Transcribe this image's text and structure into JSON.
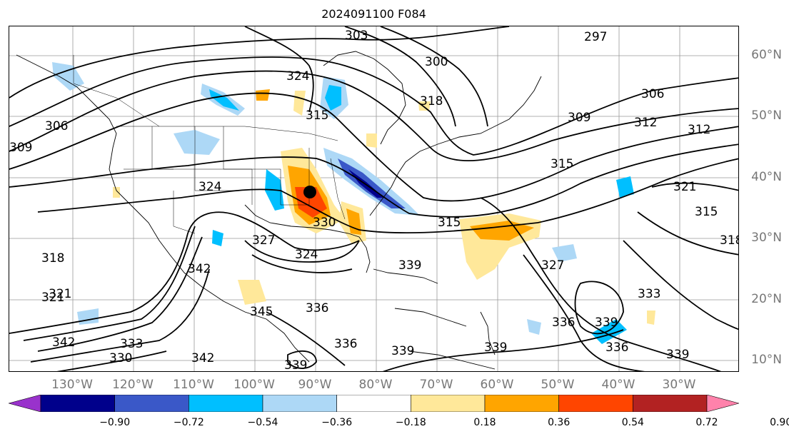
{
  "title": "2024091100 F084",
  "latitude_labels": [
    "60°N",
    "50°N",
    "40°N",
    "30°N",
    "20°N",
    "10°N"
  ],
  "longitude_labels": [
    "130°W",
    "120°W",
    "110°W",
    "100°W",
    "90°W",
    "80°W",
    "70°W",
    "60°W",
    "50°W",
    "40°W",
    "30°W"
  ],
  "colorbar": {
    "ticks": [
      "−0.90",
      "−0.72",
      "−0.54",
      "−0.36",
      "−0.18",
      "0.18",
      "0.36",
      "0.54",
      "0.72",
      "0.90"
    ],
    "colors": [
      "#9932cc",
      "#00008b",
      "#3a58c8",
      "#00bfff",
      "#add8f6",
      "#ffffff",
      "#ffe89a",
      "#ffa500",
      "#ff4500",
      "#b22222",
      "#ff82ab"
    ]
  },
  "contour_labels": [
    "303",
    "297",
    "300",
    "306",
    "306",
    "309",
    "312",
    "312",
    "315",
    "318",
    "321",
    "324",
    "324",
    "315",
    "315",
    "318",
    "321",
    "324",
    "327",
    "327",
    "330",
    "333",
    "336",
    "339",
    "339",
    "339",
    "342",
    "342",
    "345",
    "336",
    "333",
    "330",
    "339",
    "336",
    "339",
    "309",
    "318",
    "321",
    "336",
    "339",
    "342",
    "315"
  ],
  "storm_marker": "tropical-cyclone-position"
}
